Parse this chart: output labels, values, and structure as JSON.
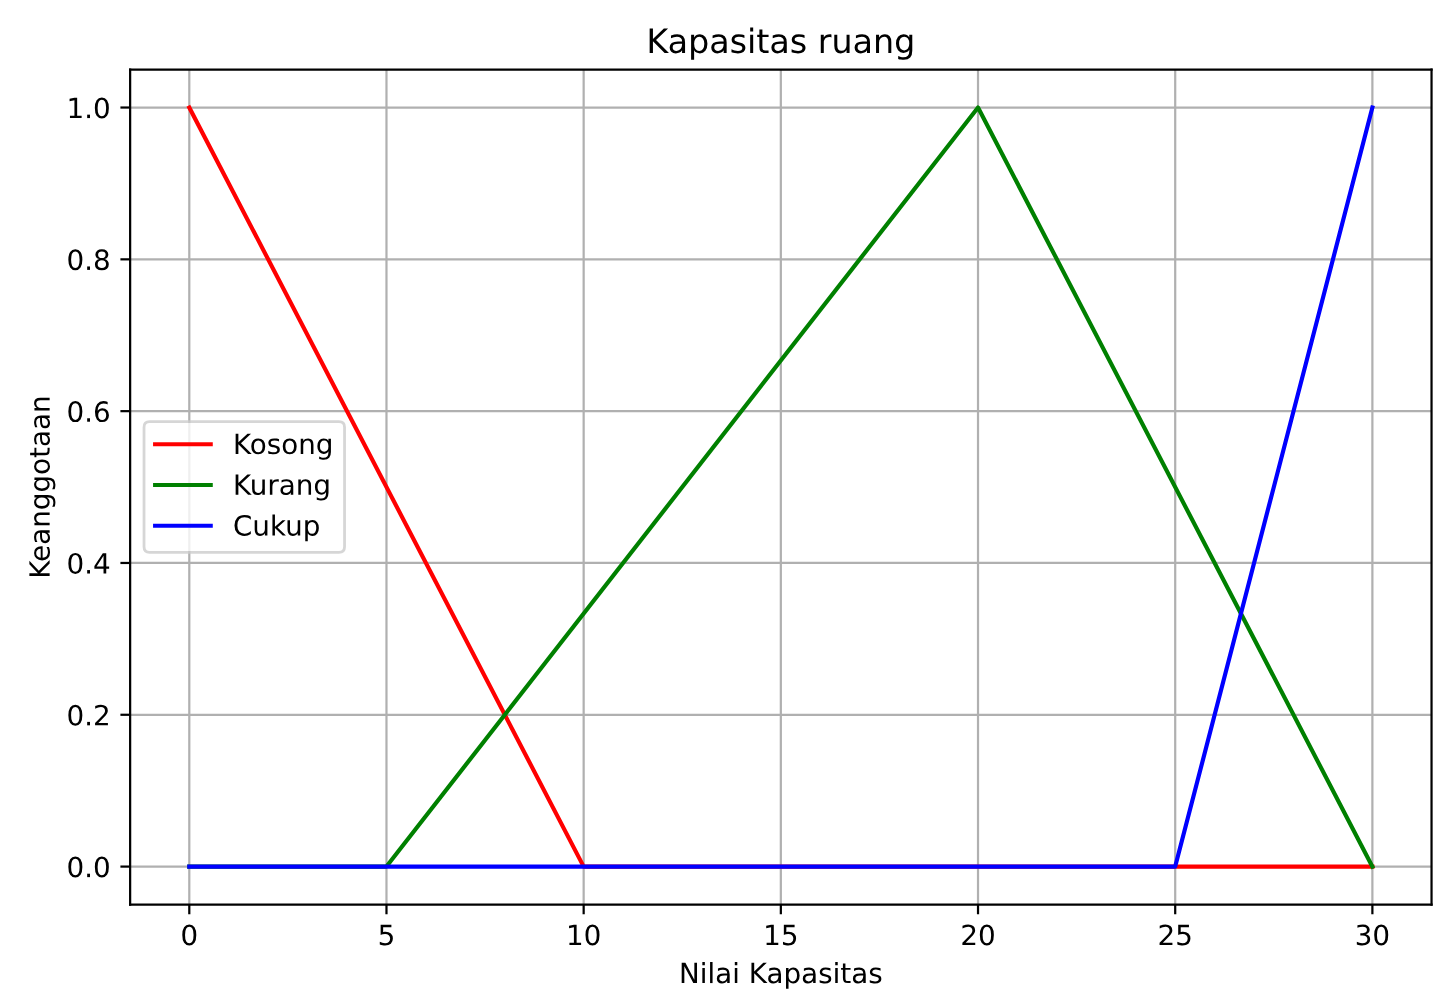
{
  "chart_data": {
    "type": "line",
    "title": "Kapasitas ruang",
    "xlabel": "Nilai Kapasitas",
    "ylabel": "Keanggotaan",
    "series": [
      {
        "name": "Kosong",
        "color": "#ff0000",
        "x": [
          0,
          10,
          30
        ],
        "values": [
          1,
          0,
          0
        ]
      },
      {
        "name": "Kurang",
        "color": "#008000",
        "x": [
          0,
          5,
          20,
          30
        ],
        "values": [
          0,
          0,
          1,
          0
        ]
      },
      {
        "name": "Cukup",
        "color": "#0000ff",
        "x": [
          0,
          25,
          30
        ],
        "values": [
          0,
          0,
          1
        ]
      }
    ],
    "xlim": [
      -1.5,
      31.5
    ],
    "ylim": [
      -0.05,
      1.05
    ],
    "xticks": [
      0,
      5,
      10,
      15,
      20,
      25,
      30
    ],
    "yticks": [
      {
        "value": 0,
        "label": "0.0"
      },
      {
        "value": 0.2,
        "label": "0.2"
      },
      {
        "value": 0.4,
        "label": "0.4"
      },
      {
        "value": 0.6,
        "label": "0.6"
      },
      {
        "value": 0.8,
        "label": "0.8"
      },
      {
        "value": 1,
        "label": "1.0"
      }
    ],
    "grid": true,
    "legend": "center left"
  }
}
